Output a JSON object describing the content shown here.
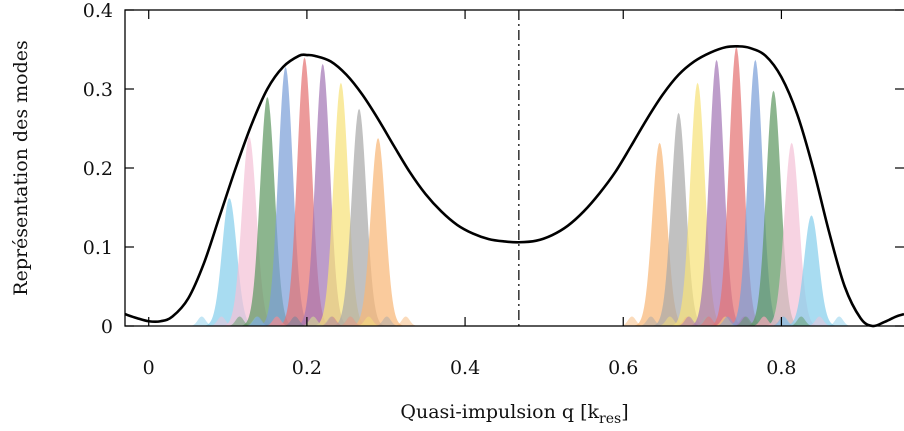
{
  "chart_data": {
    "type": "area",
    "xlabel": "Quasi-impulsion q [k",
    "xlabel_subscript": "res",
    "xlabel_close": "]",
    "ylabel": "Représentation des modes",
    "xlim": [
      -0.03,
      0.955
    ],
    "ylim": [
      0,
      0.4
    ],
    "x_ticks": [
      0,
      0.2,
      0.4,
      0.6,
      0.8
    ],
    "x_tick_labels": [
      "0",
      "0.2",
      "0.4",
      "0.6",
      "0.8"
    ],
    "y_ticks": [
      0,
      0.1,
      0.2,
      0.3,
      0.4
    ],
    "y_tick_labels": [
      "0",
      "0.1",
      "0.2",
      "0.3",
      "0.4"
    ],
    "grid": false,
    "legend": "none",
    "vertical_line": {
      "x": 0.468,
      "style": "dash-dot",
      "color": "#111111"
    },
    "envelope": {
      "color": "#000000",
      "points": [
        [
          -0.03,
          0.015
        ],
        [
          -0.015,
          0.01
        ],
        [
          0.0,
          0.006
        ],
        [
          0.015,
          0.006
        ],
        [
          0.03,
          0.012
        ],
        [
          0.05,
          0.035
        ],
        [
          0.07,
          0.08
        ],
        [
          0.09,
          0.14
        ],
        [
          0.11,
          0.2
        ],
        [
          0.13,
          0.255
        ],
        [
          0.15,
          0.3
        ],
        [
          0.17,
          0.328
        ],
        [
          0.19,
          0.342
        ],
        [
          0.2,
          0.343
        ],
        [
          0.21,
          0.342
        ],
        [
          0.23,
          0.335
        ],
        [
          0.25,
          0.318
        ],
        [
          0.27,
          0.293
        ],
        [
          0.29,
          0.262
        ],
        [
          0.31,
          0.228
        ],
        [
          0.33,
          0.195
        ],
        [
          0.35,
          0.167
        ],
        [
          0.37,
          0.145
        ],
        [
          0.39,
          0.128
        ],
        [
          0.41,
          0.117
        ],
        [
          0.43,
          0.11
        ],
        [
          0.45,
          0.107
        ],
        [
          0.468,
          0.106
        ],
        [
          0.49,
          0.108
        ],
        [
          0.51,
          0.115
        ],
        [
          0.53,
          0.127
        ],
        [
          0.55,
          0.145
        ],
        [
          0.57,
          0.168
        ],
        [
          0.59,
          0.195
        ],
        [
          0.61,
          0.228
        ],
        [
          0.63,
          0.262
        ],
        [
          0.65,
          0.293
        ],
        [
          0.67,
          0.318
        ],
        [
          0.69,
          0.335
        ],
        [
          0.71,
          0.346
        ],
        [
          0.73,
          0.353
        ],
        [
          0.745,
          0.354
        ],
        [
          0.76,
          0.352
        ],
        [
          0.78,
          0.342
        ],
        [
          0.8,
          0.315
        ],
        [
          0.82,
          0.268
        ],
        [
          0.84,
          0.2
        ],
        [
          0.86,
          0.12
        ],
        [
          0.88,
          0.05
        ],
        [
          0.9,
          0.01
        ],
        [
          0.915,
          0.0
        ],
        [
          0.93,
          0.005
        ],
        [
          0.945,
          0.012
        ],
        [
          0.955,
          0.015
        ]
      ]
    },
    "mode_colors": [
      "#87ceeb",
      "#f4c2d7",
      "#5f9963",
      "#7ba0d8",
      "#e57373",
      "#a377b5",
      "#f7e27a",
      "#a9a9a9",
      "#f8b777"
    ],
    "left_modes": [
      {
        "center": 0.102,
        "height": 0.162
      },
      {
        "center": 0.127,
        "height": 0.24
      },
      {
        "center": 0.15,
        "height": 0.29
      },
      {
        "center": 0.173,
        "height": 0.328
      },
      {
        "center": 0.197,
        "height": 0.34
      },
      {
        "center": 0.22,
        "height": 0.332
      },
      {
        "center": 0.243,
        "height": 0.308
      },
      {
        "center": 0.266,
        "height": 0.275
      },
      {
        "center": 0.29,
        "height": 0.238
      }
    ],
    "right_modes": [
      {
        "center": 0.646,
        "height": 0.232
      },
      {
        "center": 0.67,
        "height": 0.27
      },
      {
        "center": 0.694,
        "height": 0.308
      },
      {
        "center": 0.718,
        "height": 0.337
      },
      {
        "center": 0.743,
        "height": 0.353
      },
      {
        "center": 0.767,
        "height": 0.337
      },
      {
        "center": 0.79,
        "height": 0.298
      },
      {
        "center": 0.813,
        "height": 0.232
      },
      {
        "center": 0.838,
        "height": 0.14
      }
    ]
  }
}
